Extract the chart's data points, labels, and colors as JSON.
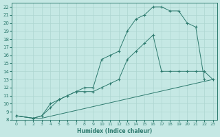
{
  "xlabel": "Humidex (Indice chaleur)",
  "ylabel": "",
  "bg_color": "#c5e8e4",
  "grid_color": "#aed6d0",
  "line_color": "#2d7a6e",
  "xlim": [
    -0.5,
    23.5
  ],
  "ylim": [
    8,
    22.5
  ],
  "xticks": [
    0,
    1,
    2,
    3,
    4,
    5,
    6,
    7,
    8,
    9,
    10,
    11,
    12,
    13,
    14,
    15,
    16,
    17,
    18,
    19,
    20,
    21,
    22,
    23
  ],
  "yticks": [
    8,
    9,
    10,
    11,
    12,
    13,
    14,
    15,
    16,
    17,
    18,
    19,
    20,
    21,
    22
  ],
  "line1_x": [
    0,
    2,
    3,
    23
  ],
  "line1_y": [
    8.5,
    8.2,
    8.2,
    13.0
  ],
  "line2_x": [
    0,
    2,
    3,
    4,
    5,
    6,
    7,
    8,
    9,
    10,
    11,
    12,
    13,
    14,
    15,
    16,
    17,
    18,
    19,
    20,
    21,
    22,
    23
  ],
  "line2_y": [
    8.5,
    8.2,
    8.5,
    9.5,
    10.5,
    11.0,
    11.5,
    11.5,
    11.5,
    12.0,
    12.5,
    13.0,
    15.5,
    16.5,
    17.5,
    18.5,
    14.0,
    14.0,
    14.0,
    14.0,
    14.0,
    14.0,
    13.0
  ],
  "line3_x": [
    0,
    2,
    3,
    4,
    5,
    6,
    7,
    8,
    9,
    10,
    11,
    12,
    13,
    14,
    15,
    16,
    17,
    18,
    19,
    20,
    21,
    22
  ],
  "line3_y": [
    8.5,
    8.2,
    8.5,
    10.0,
    10.5,
    11.0,
    11.5,
    12.0,
    12.0,
    15.5,
    16.0,
    16.5,
    19.0,
    20.5,
    21.0,
    22.0,
    22.0,
    21.5,
    21.5,
    20.0,
    19.5,
    13.0
  ]
}
